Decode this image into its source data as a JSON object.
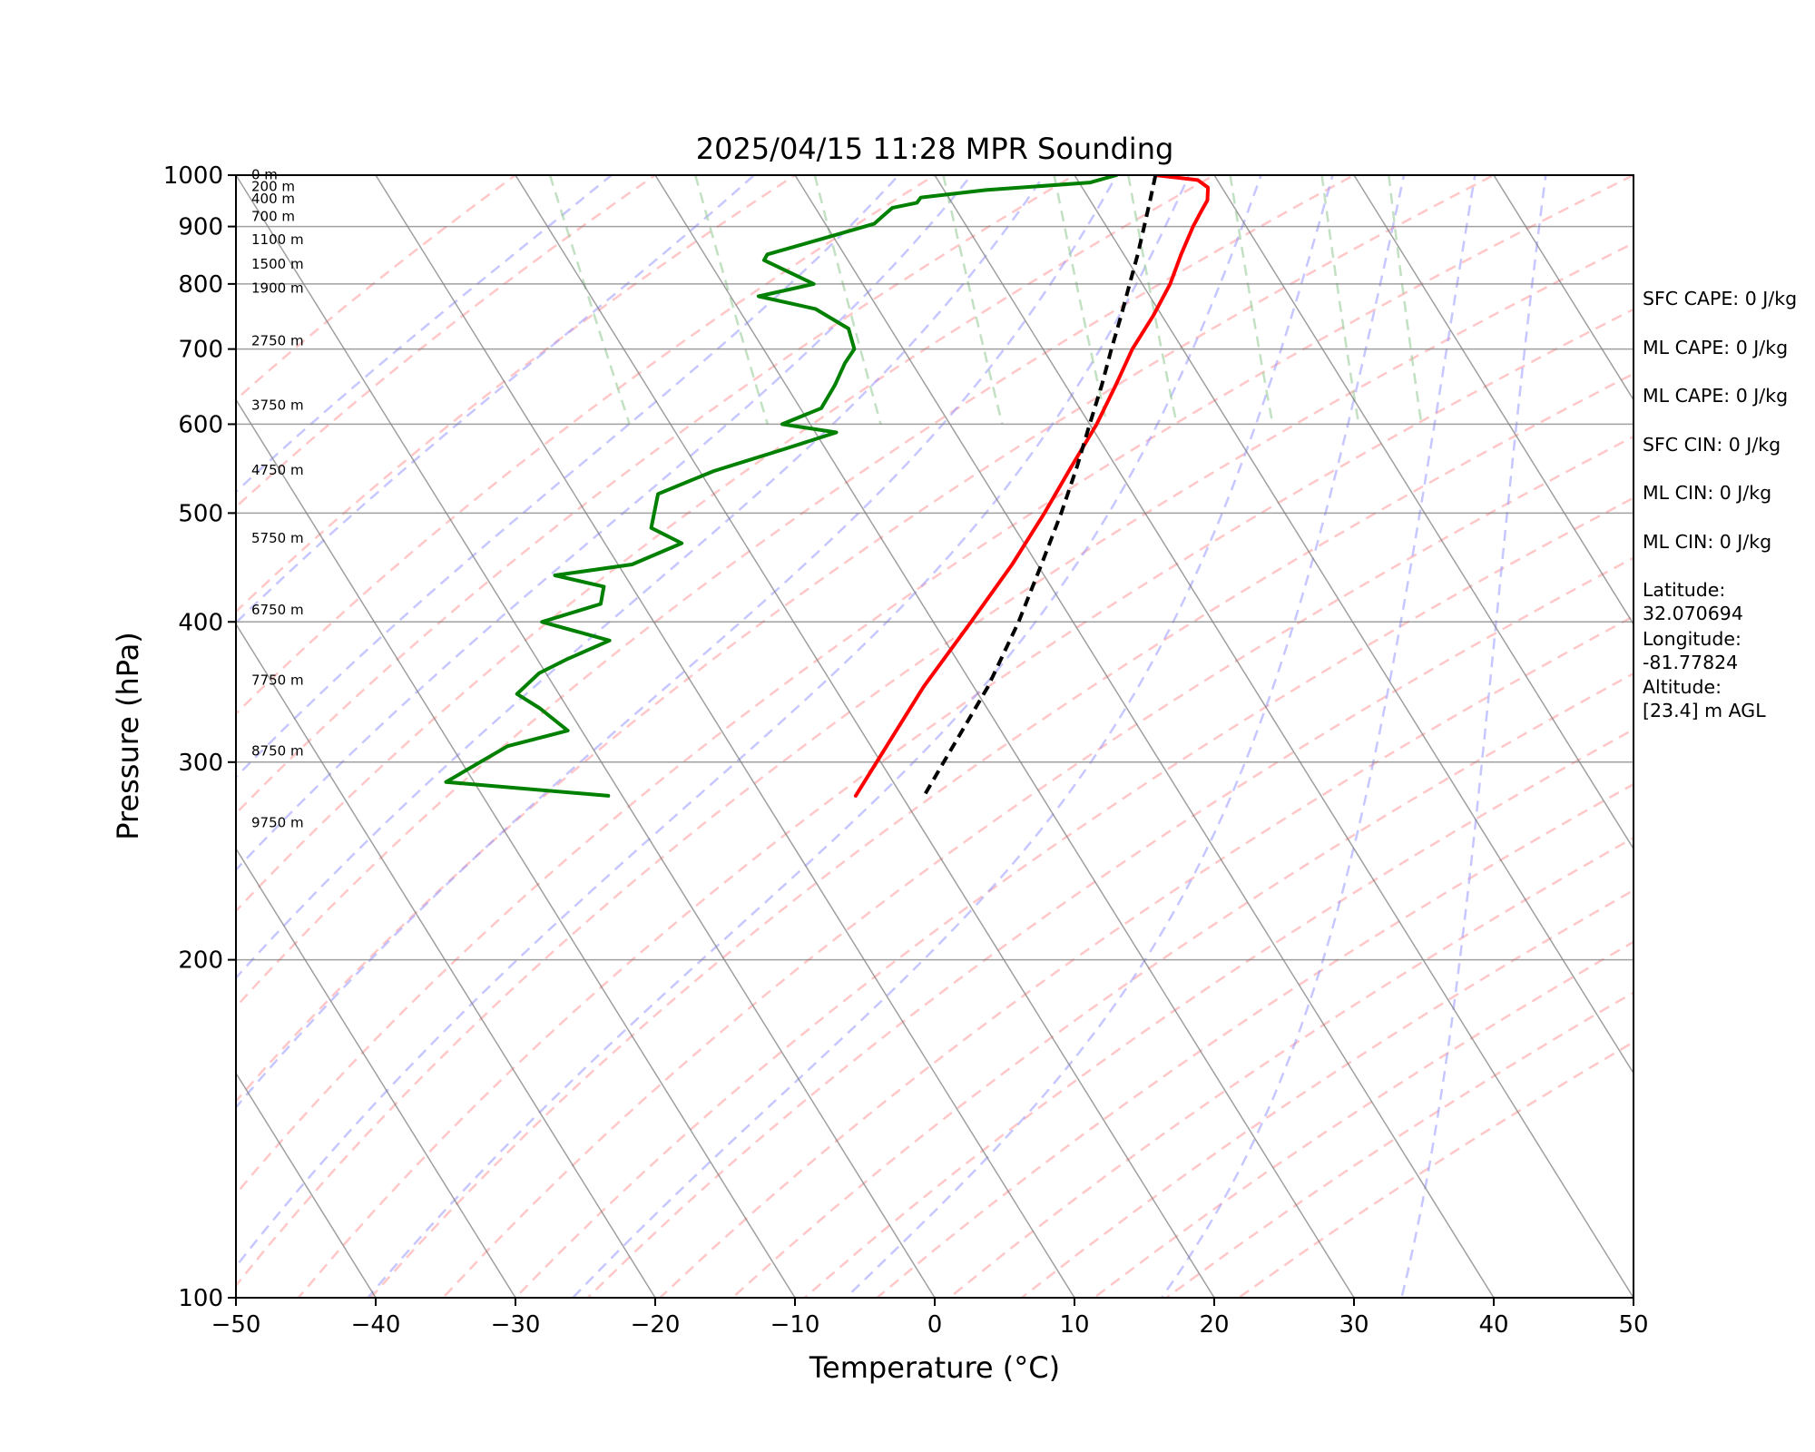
{
  "chart_data": {
    "type": "line",
    "title": "2025/04/15 11:28 MPR Sounding",
    "xlabel": "Temperature (°C)",
    "ylabel": "Pressure (hPa)",
    "xlim": [
      -50,
      50
    ],
    "ylim": [
      1000,
      100
    ],
    "y_scale": "log",
    "skew": true,
    "x_ticks": [
      "−50",
      "−40",
      "−30",
      "−20",
      "−10",
      "0",
      "10",
      "20",
      "30",
      "40",
      "50"
    ],
    "y_ticks": [
      "100",
      "200",
      "300",
      "400",
      "500",
      "600",
      "700",
      "800",
      "900",
      "1000"
    ],
    "grid": true,
    "series": [
      {
        "color": "#ff0000",
        "points": [
          [
            1000,
            15.8
          ],
          [
            990,
            18.6
          ],
          [
            975,
            19.0
          ],
          [
            950,
            18.4
          ],
          [
            925,
            17.3
          ],
          [
            900,
            16.2
          ],
          [
            850,
            14.1
          ],
          [
            800,
            12.0
          ],
          [
            750,
            9.4
          ],
          [
            700,
            6.4
          ],
          [
            650,
            3.6
          ],
          [
            600,
            0.5
          ],
          [
            550,
            -3.2
          ],
          [
            500,
            -7.2
          ],
          [
            450,
            -11.8
          ],
          [
            400,
            -17.3
          ],
          [
            350,
            -23.6
          ],
          [
            300,
            -30.3
          ],
          [
            280,
            -33.3
          ]
        ]
      },
      {
        "color": "#008000",
        "points": [
          [
            1000,
            13.0
          ],
          [
            985,
            10.8
          ],
          [
            970,
            3.0
          ],
          [
            955,
            -2.0
          ],
          [
            945,
            -2.5
          ],
          [
            935,
            -4.5
          ],
          [
            920,
            -5.5
          ],
          [
            905,
            -6.5
          ],
          [
            880,
            -10.5
          ],
          [
            850,
            -15.5
          ],
          [
            840,
            -16.0
          ],
          [
            800,
            -13.5
          ],
          [
            780,
            -18.0
          ],
          [
            760,
            -14.5
          ],
          [
            730,
            -13.0
          ],
          [
            700,
            -13.5
          ],
          [
            680,
            -14.8
          ],
          [
            650,
            -16.5
          ],
          [
            620,
            -18.5
          ],
          [
            600,
            -22.0
          ],
          [
            590,
            -18.5
          ],
          [
            570,
            -23.0
          ],
          [
            545,
            -29.0
          ],
          [
            520,
            -34.0
          ],
          [
            485,
            -36.0
          ],
          [
            470,
            -34.5
          ],
          [
            450,
            -39.0
          ],
          [
            440,
            -45.0
          ],
          [
            430,
            -42.0
          ],
          [
            415,
            -43.0
          ],
          [
            400,
            -48.0
          ],
          [
            385,
            -44.0
          ],
          [
            370,
            -48.0
          ],
          [
            360,
            -50.5
          ],
          [
            345,
            -53.0
          ],
          [
            335,
            -52.0
          ],
          [
            320,
            -51.0
          ],
          [
            310,
            -56.0
          ],
          [
            288,
            -62.0
          ],
          [
            280,
            -51.0
          ]
        ]
      },
      {
        "color": "#000000",
        "dashed": true,
        "points": [
          [
            1000,
            15.8
          ],
          [
            950,
            14.3
          ],
          [
            900,
            12.7
          ],
          [
            850,
            11.0
          ],
          [
            800,
            9.1
          ],
          [
            750,
            7.1
          ],
          [
            700,
            4.9
          ],
          [
            650,
            2.6
          ],
          [
            600,
            0.0
          ],
          [
            550,
            -2.8
          ],
          [
            500,
            -6.0
          ],
          [
            450,
            -9.7
          ],
          [
            400,
            -13.9
          ],
          [
            350,
            -19.0
          ],
          [
            300,
            -25.5
          ],
          [
            280,
            -28.4
          ]
        ]
      }
    ],
    "height_labels": [
      {
        "p": 1001,
        "text": "0 m"
      },
      {
        "p": 977,
        "text": "200 m"
      },
      {
        "p": 953,
        "text": "400 m"
      },
      {
        "p": 919,
        "text": "700 m"
      },
      {
        "p": 876,
        "text": "1100 m"
      },
      {
        "p": 833,
        "text": "1500 m"
      },
      {
        "p": 793,
        "text": "1900 m"
      },
      {
        "p": 712,
        "text": "2750 m"
      },
      {
        "p": 624,
        "text": "3750 m"
      },
      {
        "p": 546,
        "text": "4750 m"
      },
      {
        "p": 475,
        "text": "5750 m"
      },
      {
        "p": 410,
        "text": "6750 m"
      },
      {
        "p": 355,
        "text": "7750 m"
      },
      {
        "p": 307,
        "text": "8750 m"
      },
      {
        "p": 265,
        "text": "9750 m"
      }
    ],
    "annotations": [
      "SFC CAPE: 0 J/kg",
      "ML CAPE: 0 J/kg",
      "ML CAPE: 0 J/kg",
      "SFC CIN: 0 J/kg",
      "ML CIN: 0 J/kg",
      "ML CIN: 0 J/kg",
      "Latitude:\n32.070694",
      "Longitude:\n-81.77824",
      "Altitude:\n[23.4] m AGL"
    ],
    "reference_lines": {
      "isotherm_color": "#808080",
      "dry_adiabat_color": "#ff9999",
      "moist_adiabat_color": "#9999ff",
      "mixing_ratio_color": "#99cc99"
    }
  }
}
